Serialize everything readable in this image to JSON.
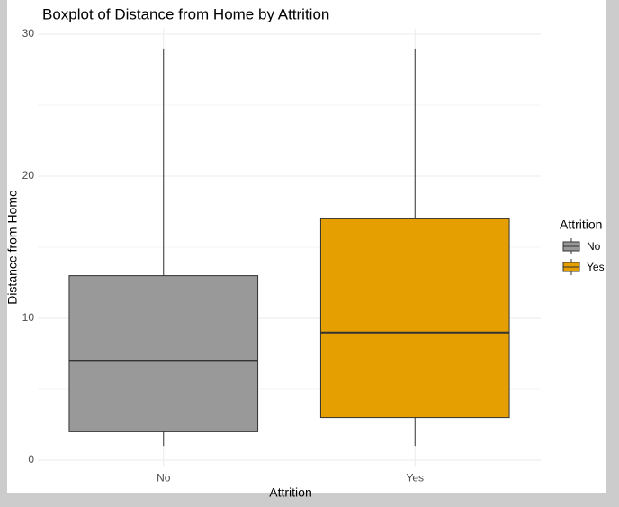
{
  "chart_data": {
    "type": "boxplot",
    "title": "Boxplot of Distance from Home by Attrition",
    "x_label": "Attrition",
    "y_label": "Distance from Home",
    "categories": [
      "No",
      "Yes"
    ],
    "series": [
      {
        "name": "No",
        "color": "#999999",
        "whisker_low": 1,
        "q1": 2,
        "median": 7,
        "q3": 13,
        "whisker_high": 29
      },
      {
        "name": "Yes",
        "color": "#E69F00",
        "whisker_low": 1,
        "q1": 3,
        "median": 9,
        "q3": 17,
        "whisker_high": 29
      }
    ],
    "legend_title": "Attrition",
    "legend": "right",
    "ylim": [
      -0.4,
      30.4
    ],
    "yticks": [
      0,
      10,
      20,
      30
    ],
    "minor_yticks": [
      5,
      15,
      25
    ],
    "grid": true
  }
}
